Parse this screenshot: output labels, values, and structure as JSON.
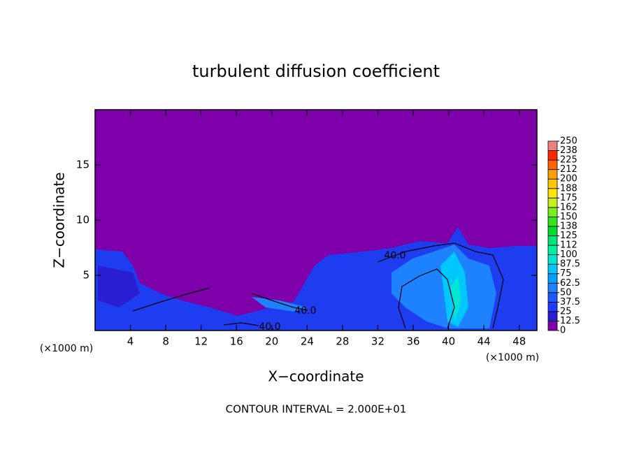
{
  "chart_data": {
    "type": "contour",
    "title": "turbulent diffusion coefficient",
    "xlabel": "X−coordinate",
    "ylabel": "Z−coordinate",
    "xlabel_unit": "(×1000 m)",
    "ylabel_unit": "(×1000 m)",
    "footnote": "CONTOUR INTERVAL = 2.000E+01",
    "xlim": [
      0,
      50
    ],
    "xticks": [
      4,
      8,
      12,
      16,
      20,
      24,
      28,
      32,
      36,
      40,
      44,
      48
    ],
    "ylim": [
      0,
      20
    ],
    "yticks": [
      5,
      10,
      15
    ],
    "contour_labels": [
      "40.0",
      "40.0",
      "40.0"
    ],
    "colorbar": {
      "clim": [
        0,
        250
      ],
      "ticks": [
        0,
        12.5,
        25,
        37.5,
        50,
        62.5,
        75,
        87.5,
        100,
        {
          "value": 112.5,
          "label": "112"
        },
        125,
        {
          "value": 137.5,
          "label": "138"
        },
        150,
        {
          "value": 162.5,
          "label": "162"
        },
        175,
        {
          "value": 187.5,
          "label": "188"
        },
        200,
        {
          "value": 212.5,
          "label": "212"
        },
        225,
        {
          "value": 237.5,
          "label": "238"
        },
        250
      ],
      "colors": [
        "#7d00aa",
        "#2a1ed2",
        "#1e3cff",
        "#1e5aff",
        "#1e82ff",
        "#00a0ff",
        "#00c8ff",
        "#00e6d2",
        "#00f0a0",
        "#00e678",
        "#00dc32",
        "#32e61e",
        "#78f01e",
        "#c8f01e",
        "#ffe600",
        "#ffc800",
        "#ffa000",
        "#ff6400",
        "#ff2800",
        "#f08080"
      ]
    }
  }
}
